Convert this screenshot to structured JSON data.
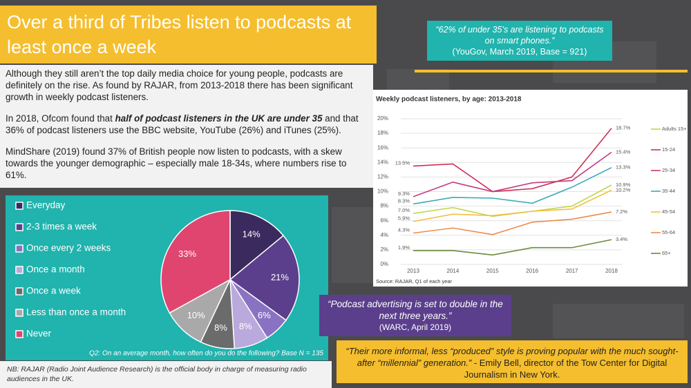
{
  "header": {
    "title": "Over a third of Tribes listen to podcasts at least once a week"
  },
  "body": {
    "paragraphs": [
      [
        "Although they still aren’t the top daily media choice for young people, podcasts are definitely on the rise. As found by RAJAR, from 2013-2018 there has been significant growth in weekly podcast listeners."
      ],
      [
        "In 2018, Ofcom found that ",
        "half of podcast listeners in the UK are under 35",
        " and that 36% of podcast listeners use the BBC website, YouTube (26%) and iTunes (25%)."
      ],
      [
        "MindShare (2019) found 37% of British people now listen to podcasts, with a skew towards the younger demographic – especially male 18-34s, where numbers rise to 61%."
      ]
    ]
  },
  "footnote": "NB: RAJAR (Radio Joint Audience Research) is the official body in charge of measuring radio audiences in the UK.",
  "quotes": [
    {
      "text": "“62% of under 35’s are listening to podcasts on smart phones.”",
      "source": "(YouGov, March 2019, Base = 921)"
    },
    {
      "text": "“Podcast advertising is set to double in the next three years.”",
      "source": "(WARC, April 2019)"
    },
    {
      "text": "“Their more informal, less “produced” style is proving popular with the much sought-after “millennial” generation.”",
      "source": " - Emily Bell, director of the Tow Center for Digital Journalism in New York."
    }
  ],
  "chart_data": [
    {
      "type": "pie",
      "categories": [
        "Everyday",
        "2-3 times a week",
        "Once every 2 weeks",
        "Once a month",
        "Once a week",
        "Less than once a month",
        "Never"
      ],
      "values": [
        14,
        21,
        6,
        8,
        8,
        10,
        33
      ],
      "value_labels": [
        "14%",
        "21%",
        "6%",
        "8%",
        "8%",
        "10%",
        "33%"
      ],
      "colors": [
        "#3b2a5e",
        "#5b3f8c",
        "#8a72c2",
        "#b9a9dc",
        "#6b6b6b",
        "#a9a9a9",
        "#e0456f"
      ],
      "note": "Q2: On an average month, how often do you do the following? Base N = 135"
    },
    {
      "type": "line",
      "title": "Weekly podcast listeners, by age: 2013-2018",
      "categories": [
        "2013",
        "2014",
        "2015",
        "2016",
        "2017",
        "2018"
      ],
      "series": [
        {
          "name": "Adults 15+",
          "color": "#c3d64a",
          "values": [
            7.0,
            7.8,
            6.6,
            7.3,
            8.0,
            10.9
          ],
          "value_labels": [
            "7.0%",
            null,
            null,
            null,
            null,
            "10.9%"
          ]
        },
        {
          "name": "15-24",
          "color": "#cf2f55",
          "values": [
            13.5,
            13.8,
            10.0,
            10.4,
            12.0,
            18.7
          ],
          "value_labels": [
            "13.5%",
            null,
            null,
            null,
            null,
            "18.7%"
          ]
        },
        {
          "name": "25-34",
          "color": "#c2387f",
          "values": [
            9.3,
            11.3,
            10.0,
            11.2,
            11.5,
            15.4
          ],
          "value_labels": [
            "9.3%",
            null,
            null,
            null,
            null,
            "15.4%"
          ]
        },
        {
          "name": "35-44",
          "color": "#3ba9b9",
          "values": [
            8.3,
            9.2,
            9.1,
            8.4,
            10.6,
            13.3
          ],
          "value_labels": [
            "8.3%",
            null,
            null,
            null,
            null,
            "13.3%"
          ]
        },
        {
          "name": "45-54",
          "color": "#f0c040",
          "values": [
            5.9,
            6.9,
            6.7,
            7.3,
            7.6,
            10.2
          ],
          "value_labels": [
            "5.9%",
            null,
            null,
            null,
            null,
            "10.2%"
          ]
        },
        {
          "name": "55-64",
          "color": "#ef8a4a",
          "values": [
            4.3,
            5.0,
            4.1,
            5.8,
            6.2,
            7.2
          ],
          "value_labels": [
            "4.3%",
            null,
            null,
            null,
            null,
            "7.2%"
          ]
        },
        {
          "name": "65+",
          "color": "#6a8a3a",
          "values": [
            1.9,
            1.9,
            1.3,
            2.3,
            2.3,
            3.4
          ],
          "value_labels": [
            "1.9%",
            null,
            null,
            null,
            null,
            "3.4%"
          ]
        }
      ],
      "ylim": [
        0,
        20
      ],
      "yticks": [
        {
          "value": 0,
          "label": "0%"
        },
        {
          "value": 2,
          "label": "2%"
        },
        {
          "value": 4,
          "label": "4%"
        },
        {
          "value": 6,
          "label": "6%"
        },
        {
          "value": 8,
          "label": "8%"
        },
        {
          "value": 10,
          "label": "10%"
        },
        {
          "value": 12,
          "label": "12%"
        },
        {
          "value": 14,
          "label": "14%"
        },
        {
          "value": 16,
          "label": "16%"
        },
        {
          "value": 18,
          "label": "18%"
        },
        {
          "value": 20,
          "label": "20%"
        }
      ],
      "grid": true,
      "source": "Source: RAJAR, Q1 of each year"
    }
  ]
}
